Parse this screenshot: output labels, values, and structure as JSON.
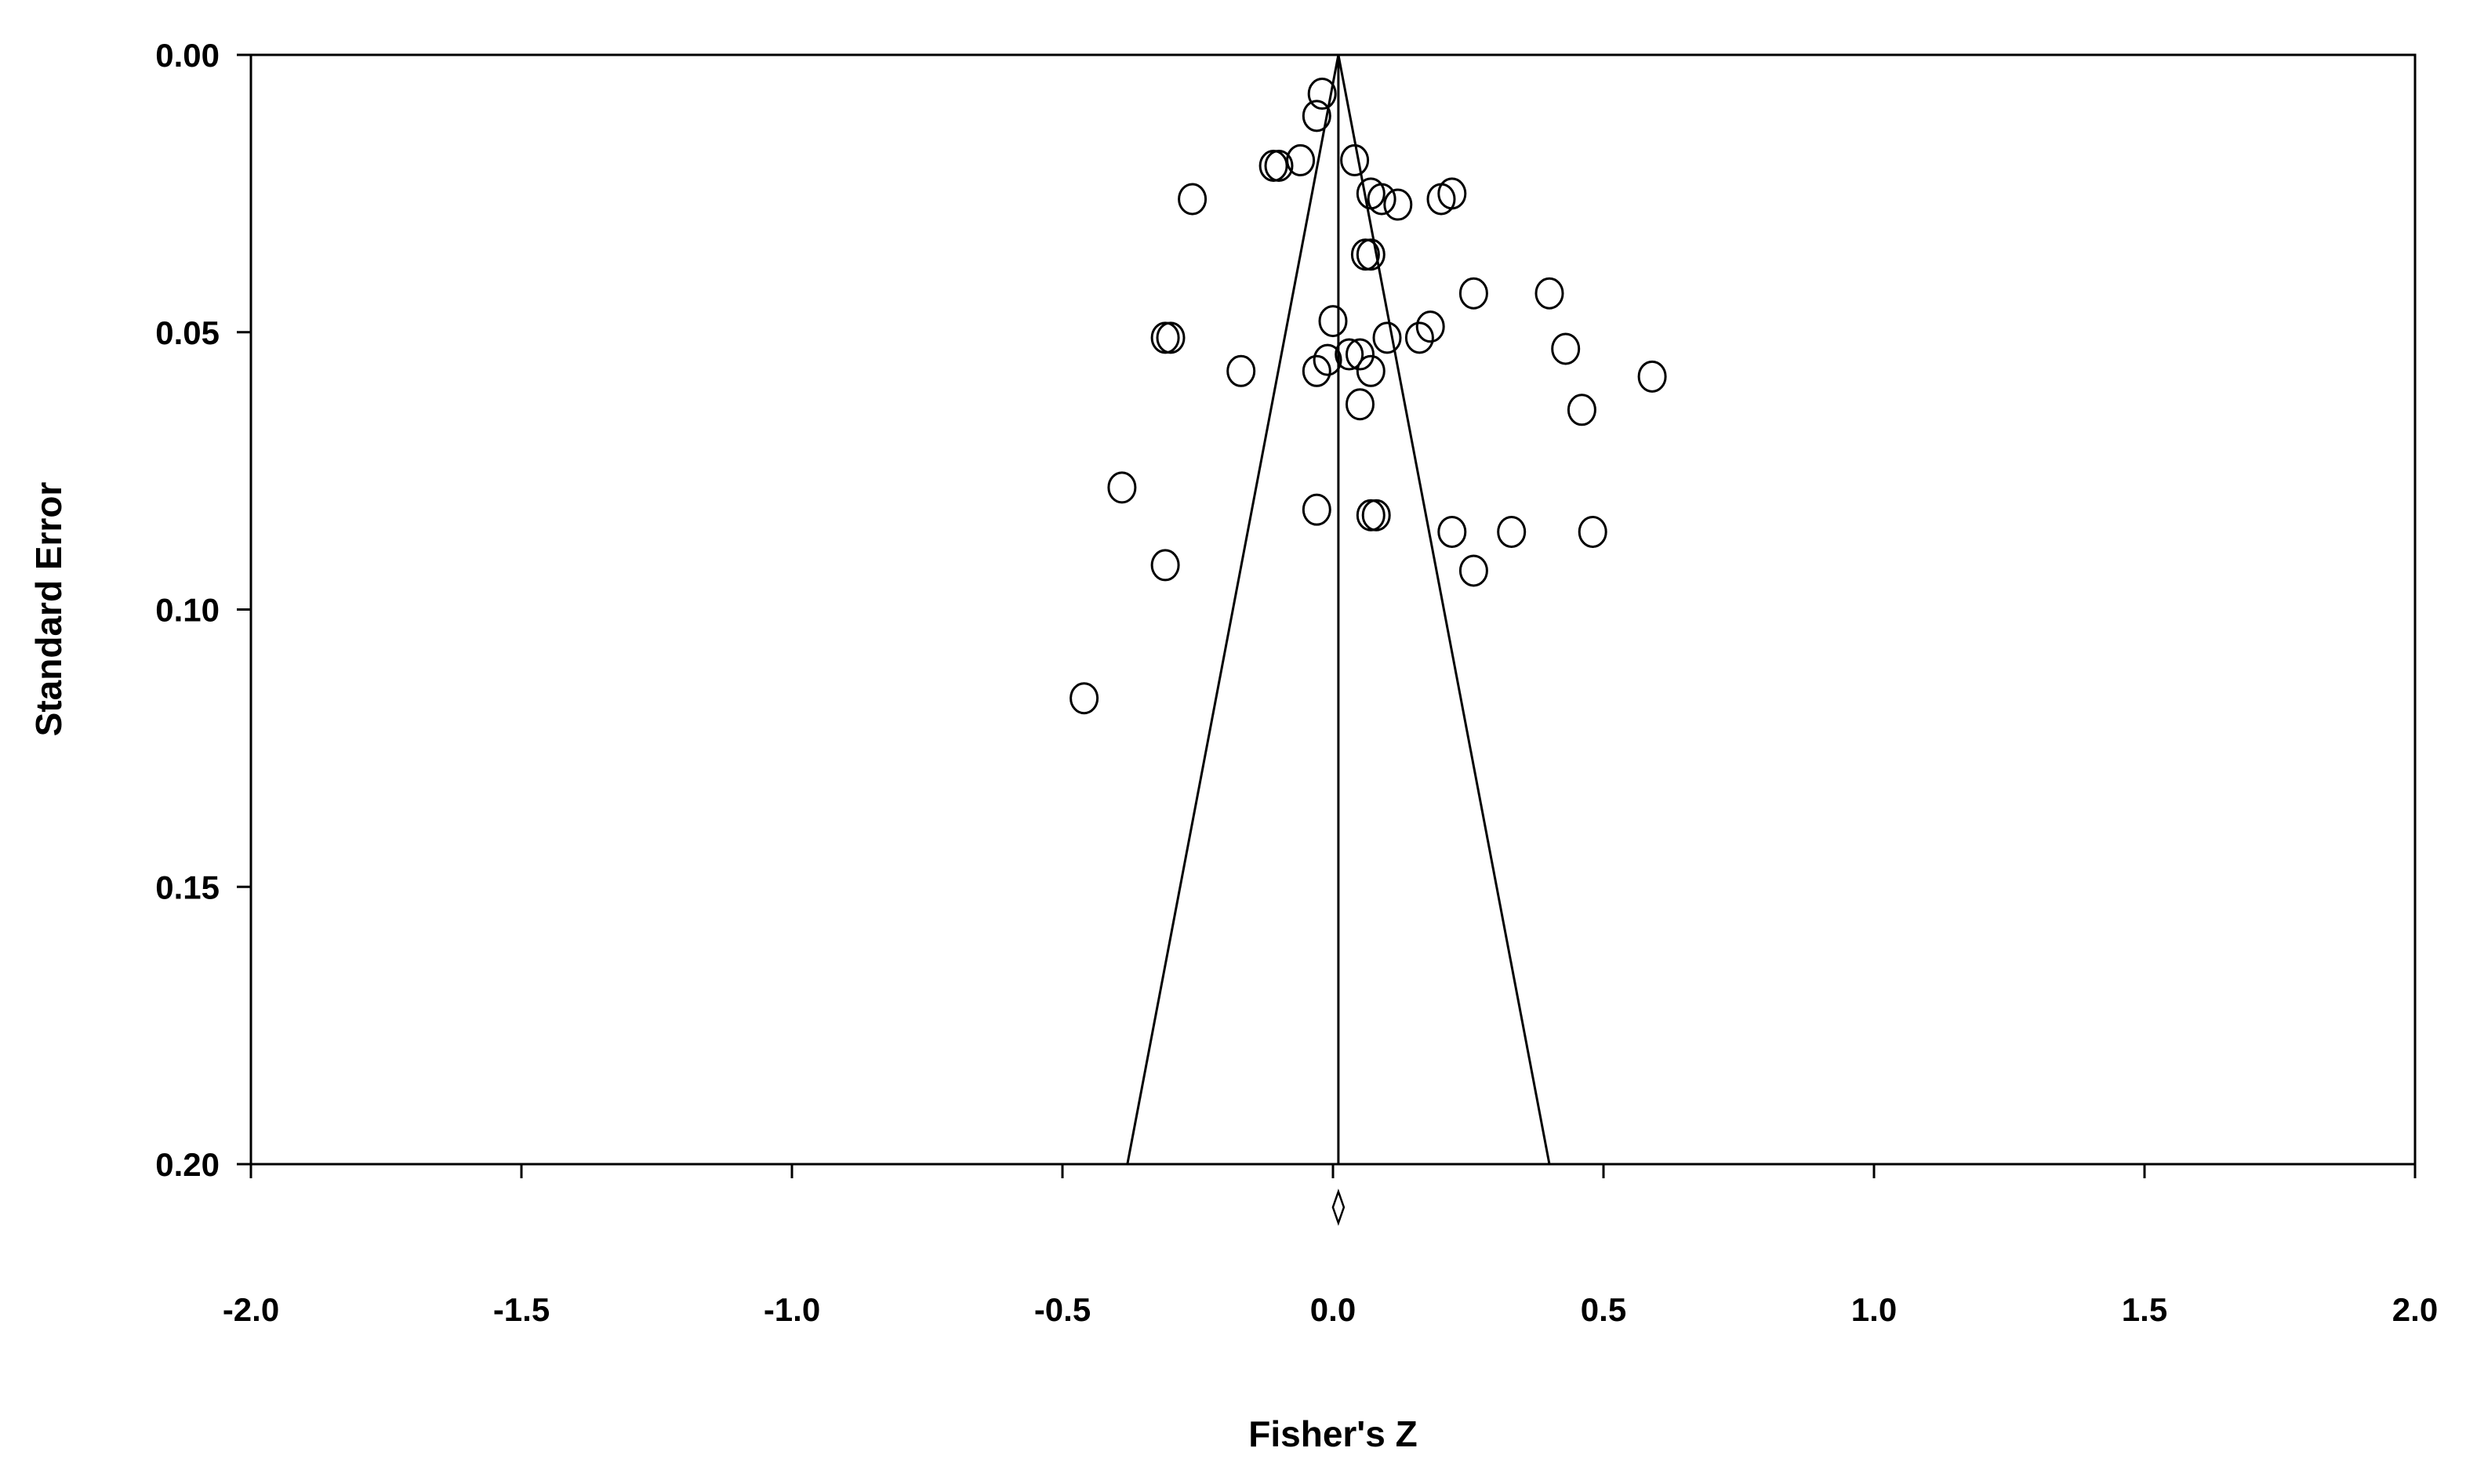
{
  "chart_data": {
    "type": "scatter",
    "xlabel": "Fisher's Z",
    "ylabel": "Standard Error",
    "xlim": [
      -2.0,
      2.0
    ],
    "ylim": [
      0.0,
      0.2
    ],
    "y_inverted": true,
    "x_ticks": [
      "-2.0",
      "-1.5",
      "-1.0",
      "-0.5",
      "0.0",
      "0.5",
      "1.0",
      "1.5",
      "2.0"
    ],
    "y_ticks": [
      "0.00",
      "0.05",
      "0.10",
      "0.15",
      "0.20"
    ],
    "grid": false,
    "marker": "open-circle",
    "pooled_estimate": 0.01,
    "funnel_apex_se": 0.0,
    "funnel_base": {
      "se": 0.2,
      "left_x": -0.38,
      "right_x": 0.4
    },
    "summary_marker": "diamond",
    "points": [
      {
        "x": -0.02,
        "se": 0.007
      },
      {
        "x": -0.03,
        "se": 0.011
      },
      {
        "x": -0.1,
        "se": 0.02
      },
      {
        "x": -0.11,
        "se": 0.02
      },
      {
        "x": -0.06,
        "se": 0.019
      },
      {
        "x": 0.04,
        "se": 0.019
      },
      {
        "x": -0.26,
        "se": 0.026
      },
      {
        "x": 0.07,
        "se": 0.025
      },
      {
        "x": 0.09,
        "se": 0.026
      },
      {
        "x": 0.12,
        "se": 0.027
      },
      {
        "x": 0.2,
        "se": 0.026
      },
      {
        "x": 0.22,
        "se": 0.025
      },
      {
        "x": 0.06,
        "se": 0.036
      },
      {
        "x": 0.07,
        "se": 0.036
      },
      {
        "x": 0.26,
        "se": 0.043
      },
      {
        "x": 0.4,
        "se": 0.043
      },
      {
        "x": 0.0,
        "se": 0.048
      },
      {
        "x": -0.31,
        "se": 0.051
      },
      {
        "x": -0.3,
        "se": 0.051
      },
      {
        "x": 0.1,
        "se": 0.051
      },
      {
        "x": 0.16,
        "se": 0.051
      },
      {
        "x": 0.18,
        "se": 0.049
      },
      {
        "x": 0.43,
        "se": 0.053
      },
      {
        "x": -0.17,
        "se": 0.057
      },
      {
        "x": -0.03,
        "se": 0.057
      },
      {
        "x": -0.01,
        "se": 0.055
      },
      {
        "x": 0.03,
        "se": 0.054
      },
      {
        "x": 0.05,
        "se": 0.054
      },
      {
        "x": 0.07,
        "se": 0.057
      },
      {
        "x": 0.59,
        "se": 0.058
      },
      {
        "x": 0.05,
        "se": 0.063
      },
      {
        "x": 0.46,
        "se": 0.064
      },
      {
        "x": -0.39,
        "se": 0.078
      },
      {
        "x": -0.03,
        "se": 0.082
      },
      {
        "x": 0.07,
        "se": 0.083
      },
      {
        "x": 0.08,
        "se": 0.083
      },
      {
        "x": 0.22,
        "se": 0.086
      },
      {
        "x": 0.33,
        "se": 0.086
      },
      {
        "x": 0.48,
        "se": 0.086
      },
      {
        "x": -0.31,
        "se": 0.092
      },
      {
        "x": 0.26,
        "se": 0.093
      },
      {
        "x": -0.46,
        "se": 0.116
      }
    ]
  }
}
